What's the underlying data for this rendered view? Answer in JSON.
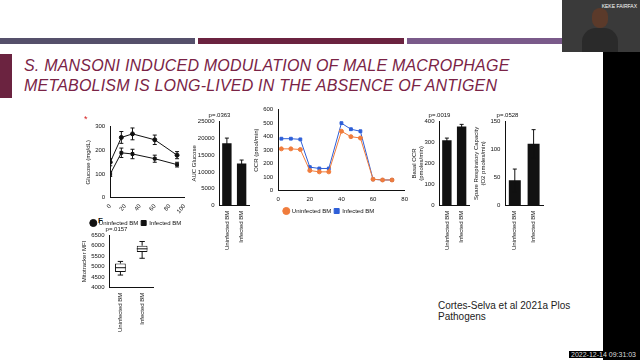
{
  "slide": {
    "title": "S. MANSONI INDUCED MODULATION OF MALE MACROPHAGE METABOLISM IS LONG-LIVED IN THE ABSENCE OF ANTIGEN",
    "citation": "Cortes-Selva et al 2021a Plos Pathogens",
    "panel_label": "F"
  },
  "video": {
    "presenter": "KEKE FAIRFAX",
    "timestamp": "2022-12-14 09:31:03"
  },
  "chart_data": [
    {
      "type": "line",
      "y_label": "Glucose (mg/dL)",
      "annotation": "*",
      "x": [
        0,
        15,
        30,
        60,
        90
      ],
      "series": [
        {
          "name": "Uninfected BM",
          "color": "#111111",
          "marker": "circle",
          "values": [
            150,
            255,
            270,
            245,
            180
          ],
          "errors": [
            15,
            25,
            25,
            20,
            15
          ]
        },
        {
          "name": "Infected BM",
          "color": "#111111",
          "marker": "square",
          "values": [
            100,
            190,
            185,
            165,
            140
          ],
          "errors": [
            10,
            20,
            20,
            15,
            10
          ]
        }
      ],
      "xlim": [
        0,
        100
      ],
      "xticks": [
        0,
        20,
        40,
        60,
        80,
        100
      ],
      "ylim": [
        0,
        300
      ],
      "yticks": [
        0,
        100,
        200,
        300
      ],
      "legend": "bottom",
      "grid": false
    },
    {
      "type": "bar",
      "y_label": "AUC Glucose",
      "annotation": "p=.0363",
      "categories": [
        "Uninfected BM",
        "Infected BM"
      ],
      "values": [
        18500,
        12500
      ],
      "errors": [
        1500,
        1000
      ],
      "color": "#111111",
      "ylim": [
        0,
        25000
      ],
      "yticks": [
        0,
        5000,
        10000,
        15000,
        20000,
        25000
      ],
      "grid": false
    },
    {
      "type": "line",
      "y_label": "OCR (pmol/min)",
      "x": [
        2,
        8,
        14,
        20,
        26,
        32,
        40,
        46,
        52,
        60,
        66,
        72
      ],
      "series": [
        {
          "name": "Uninfected BM",
          "color": "#f07c3c",
          "marker": "circle",
          "values": [
            310,
            310,
            305,
            150,
            140,
            140,
            440,
            400,
            390,
            85,
            80,
            80
          ]
        },
        {
          "name": "Infected BM",
          "color": "#2e5fd8",
          "marker": "square",
          "values": [
            385,
            385,
            380,
            175,
            165,
            165,
            500,
            455,
            440,
            85,
            80,
            80
          ]
        }
      ],
      "xlim": [
        0,
        80
      ],
      "xticks": [
        0,
        20,
        40,
        60,
        80
      ],
      "ylim": [
        0,
        600
      ],
      "yticks": [
        0,
        100,
        200,
        300,
        400,
        500,
        600
      ],
      "legend": "bottom",
      "grid": false
    },
    {
      "type": "bar",
      "y_label": [
        "Basal OCR",
        "(pmoles/min)"
      ],
      "annotation": "p=.0019",
      "categories": [
        "Uninfected BM",
        "Infected BM"
      ],
      "values": [
        310,
        375
      ],
      "errors": [
        10,
        10
      ],
      "color": "#111111",
      "ylim": [
        0,
        400
      ],
      "yticks": [
        0,
        100,
        200,
        300,
        400
      ],
      "grid": false
    },
    {
      "type": "bar",
      "y_label": [
        "Spare Respiratory Capacity",
        "(O2 pmoles/min)"
      ],
      "annotation": "p=.0528",
      "categories": [
        "Uninfected BM",
        "Infected BM"
      ],
      "values": [
        45,
        110
      ],
      "errors": [
        20,
        25
      ],
      "color": "#111111",
      "ylim": [
        0,
        150
      ],
      "yticks": [
        0,
        50,
        100,
        150
      ],
      "grid": false
    },
    {
      "type": "box",
      "y_label": "Mitotracker MFI",
      "annotation": "p=.0157",
      "categories": [
        "Uninfected BM",
        "Infected BM"
      ],
      "boxes": [
        {
          "min": 4600,
          "q1": 4750,
          "median": 4950,
          "q3": 5150,
          "max": 5250
        },
        {
          "min": 5400,
          "q1": 5700,
          "median": 5850,
          "q3": 6000,
          "max": 6200
        }
      ],
      "color": "#111111",
      "ylim": [
        4000,
        6500
      ],
      "yticks": [
        4000,
        4500,
        5000,
        5500,
        6000,
        6500
      ],
      "grid": false
    }
  ]
}
